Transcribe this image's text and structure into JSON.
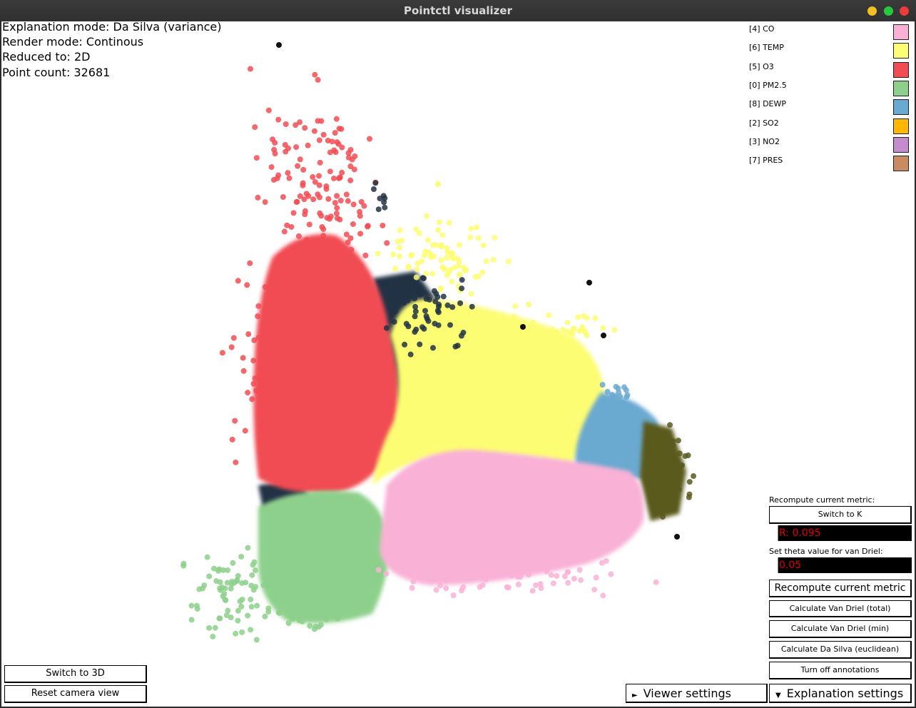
{
  "window": {
    "title": "Pointctl visualizer",
    "controls": {
      "minimize_color": "#f5be22",
      "maximize_color": "#27c840",
      "close_color": "#ec3b3b"
    }
  },
  "info": {
    "explanation_mode": "Explanation mode: Da Silva (variance)",
    "render_mode": "Render mode: Continous",
    "reduced_to": "Reduced to: 2D",
    "point_count": "Point count: 32681"
  },
  "legend": [
    {
      "label": "[4] CO",
      "color": "#f9b1d6"
    },
    {
      "label": "[6] TEMP",
      "color": "#fdfd73"
    },
    {
      "label": "[5] O3",
      "color": "#f14c53"
    },
    {
      "label": "[0] PM2.5",
      "color": "#8dd08b"
    },
    {
      "label": "[8] DEWP",
      "color": "#6aa9d0"
    },
    {
      "label": "[2] SO2",
      "color": "#ffb700"
    },
    {
      "label": "[3] NO2",
      "color": "#c48ccd"
    },
    {
      "label": "[7] PRES",
      "color": "#c98c60"
    }
  ],
  "scatter": {
    "dark_color": "#223344",
    "olive_color": "#5a5a1e"
  },
  "panel": {
    "recompute_label": "Recompute current metric:",
    "switch_k": "Switch to K",
    "r_value": "R: 0.095",
    "theta_label": "Set theta value for van Driel:",
    "theta_value": "0.05",
    "recompute_button": "Recompute current metric",
    "van_driel_total": "Calculate Van Driel (total)",
    "van_driel_min": "Calculate Van Driel (min)",
    "da_silva_euclid": "Calculate Da Silva (euclidean)",
    "annotations": "Turn off annotations"
  },
  "bottom": {
    "switch_3d": "Switch to 3D",
    "reset_camera": "Reset camera view",
    "viewer_settings": "Viewer settings",
    "explanation_settings": "Explanation settings"
  }
}
